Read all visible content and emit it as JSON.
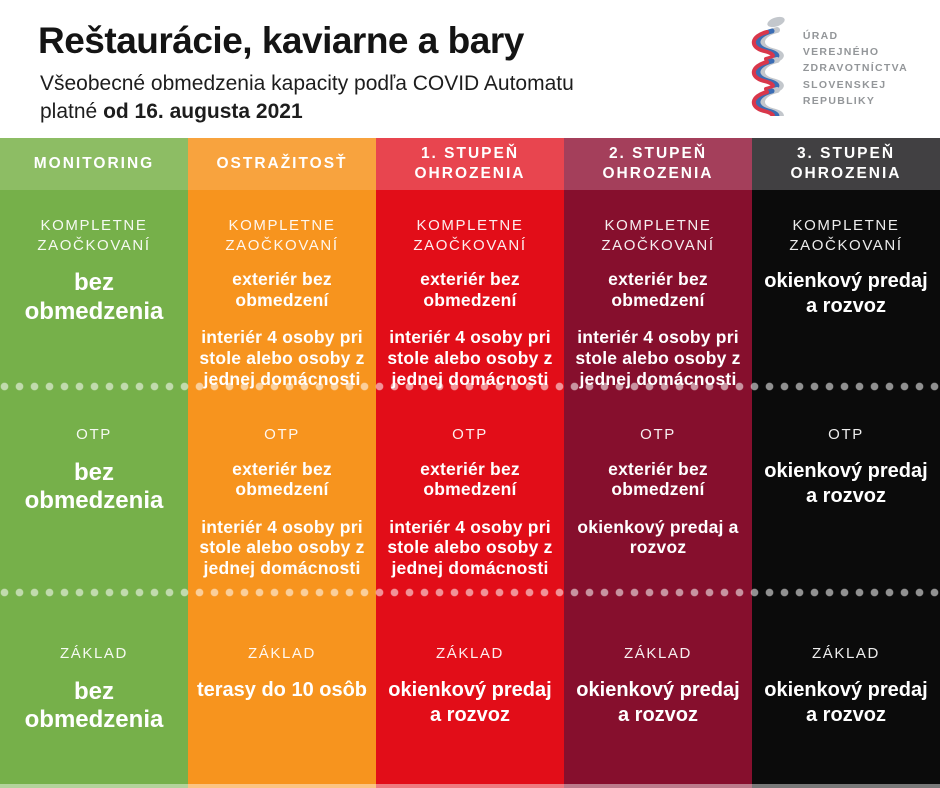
{
  "header": {
    "title": "Reštaurácie, kaviarne a bary",
    "subtitle_line1": "Všeobecné obmedzenia kapacity podľa COVID Automatu",
    "subtitle_line2_normal": "platné ",
    "subtitle_line2_bold": "od 16. augusta 2021",
    "logo_lines": [
      "ÚRAD",
      "VEREJNÉHO",
      "ZDRAVOTNÍCTVA",
      "SLOVENSKEJ",
      "REPUBLIKY"
    ]
  },
  "colors": {
    "separator_dots": "rgba(255,255,255,0.55)",
    "logo_red": "#d8374b",
    "logo_blue": "#3b6db4",
    "logo_gray": "#c3c7cc"
  },
  "table": {
    "columns": [
      {
        "slug": "monitoring",
        "label": "MONITORING",
        "header_color": "#8dbd64",
        "body_color": "#76b04a"
      },
      {
        "slug": "ostrazitost",
        "label": "OSTRAŽITOSŤ",
        "header_color": "#f8a33e",
        "body_color": "#f7941e"
      },
      {
        "slug": "stupen-1",
        "label": "1. STUPEŇ OHROZENIA",
        "header_color": "#e8454f",
        "body_color": "#e20d18"
      },
      {
        "slug": "stupen-2",
        "label": "2. STUPEŇ OHROZENIA",
        "header_color": "#a43f5b",
        "body_color": "#860f2d"
      },
      {
        "slug": "stupen-3",
        "label": "3. STUPEŇ OHROZENIA",
        "header_color": "#414042",
        "body_color": "#0b0b0b"
      }
    ],
    "rows": [
      {
        "name": "kompletne-zaockovani",
        "cells": [
          {
            "label": "KOMPLETNE ZAOČKOVANÍ",
            "lines": [
              "bez obmedzenia"
            ]
          },
          {
            "label": "KOMPLETNE ZAOČKOVANÍ",
            "lines": [
              "exteriér bez obmedzení",
              "interiér 4 osoby pri stole alebo osoby z jednej domácnosti"
            ]
          },
          {
            "label": "KOMPLETNE ZAOČKOVANÍ",
            "lines": [
              "exteriér bez obmedzení",
              "interiér 4 osoby pri stole alebo osoby z jednej domácnosti"
            ]
          },
          {
            "label": "KOMPLETNE ZAOČKOVANÍ",
            "lines": [
              "exteriér bez obmedzení",
              "interiér 4 osoby pri stole alebo osoby z jednej domácnosti"
            ]
          },
          {
            "label": "KOMPLETNE ZAOČKOVANÍ",
            "lines": [
              "okienkový predaj a rozvoz"
            ]
          }
        ]
      },
      {
        "name": "otp",
        "cells": [
          {
            "label": "OTP",
            "lines": [
              "bez obmedzenia"
            ]
          },
          {
            "label": "OTP",
            "lines": [
              "exteriér bez obmedzení",
              "interiér 4 osoby pri stole alebo osoby z jednej domácnosti"
            ]
          },
          {
            "label": "OTP",
            "lines": [
              "exteriér bez obmedzení",
              "interiér 4 osoby pri stole alebo osoby z jednej domácnosti"
            ]
          },
          {
            "label": "OTP",
            "lines": [
              "exteriér bez obmedzení",
              "okienkový predaj a rozvoz"
            ]
          },
          {
            "label": "OTP",
            "lines": [
              "okienkový predaj a rozvoz"
            ]
          }
        ]
      },
      {
        "name": "zaklad",
        "cells": [
          {
            "label": "ZÁKLAD",
            "lines": [
              "bez obmedzenia"
            ]
          },
          {
            "label": "ZÁKLAD",
            "lines": [
              "terasy do 10 osôb"
            ]
          },
          {
            "label": "ZÁKLAD",
            "lines": [
              "okienkový predaj a rozvoz"
            ]
          },
          {
            "label": "ZÁKLAD",
            "lines": [
              "okienkový predaj a rozvoz"
            ]
          },
          {
            "label": "ZÁKLAD",
            "lines": [
              "okienkový predaj a rozvoz"
            ]
          }
        ]
      }
    ]
  }
}
